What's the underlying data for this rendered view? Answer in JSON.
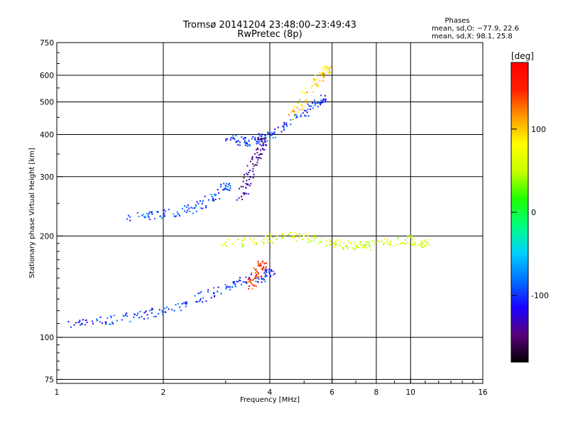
{
  "chart_data": {
    "type": "scatter",
    "title": "Tromsø 20141204 23:48:00–23:49:43",
    "subtitle": "RwPretec (8p)",
    "xlabel": "Frequency [MHz]",
    "ylabel": "Stationary phase Virtual Height [km]",
    "x_scale": "log",
    "y_scale": "log",
    "xlim": [
      1,
      16
    ],
    "ylim": [
      73,
      750
    ],
    "x_ticks": [
      1,
      2,
      4,
      6,
      8,
      10,
      16
    ],
    "x_tick_labels": [
      "1",
      "2",
      "4",
      "6",
      "8",
      "10",
      "16"
    ],
    "y_ticks": [
      75,
      100,
      200,
      300,
      400,
      500,
      600,
      750
    ],
    "y_tick_labels": [
      "75",
      "100",
      "200",
      "300",
      "400",
      "500",
      "600",
      "750"
    ],
    "grid": true,
    "legend": {
      "title": "Phases",
      "lines": [
        "mean, sd,O: −77.9, 22.6",
        "mean, sd,X:  98.1, 25.8"
      ],
      "placement": "top-right"
    },
    "colorbar": {
      "label": "[deg]",
      "range": [
        -180,
        180
      ],
      "ticks": [
        100,
        0,
        -100
      ],
      "tick_labels": [
        "100",
        "0",
        "-100"
      ],
      "colormap": "rainbow",
      "stops": [
        "#000000",
        "#5a007a",
        "#1a00ff",
        "#0070ff",
        "#00d0ff",
        "#00ff80",
        "#20ff00",
        "#c8ff00",
        "#ffff00",
        "#ff9a00",
        "#ff2000",
        "#ff0000"
      ]
    },
    "series": [
      {
        "x": [
          1.05,
          1.2,
          1.4,
          1.6,
          1.8,
          2.0,
          2.3,
          2.6,
          2.9,
          3.2,
          3.5,
          3.8,
          4.0
        ],
        "y": [
          110,
          110,
          112,
          115,
          117,
          120,
          125,
          132,
          138,
          145,
          150,
          150,
          155
        ],
        "phase": -100
      },
      {
        "x": [
          1.6,
          1.8,
          2.0,
          2.2,
          2.4,
          2.6,
          2.8,
          3.0
        ],
        "y": [
          228,
          230,
          232,
          235,
          240,
          250,
          262,
          280
        ],
        "phase": -90
      },
      {
        "x": [
          3.0,
          3.2,
          3.4,
          3.6,
          3.8,
          4.0,
          4.4,
          4.8,
          5.2,
          5.6
        ],
        "y": [
          390,
          385,
          380,
          382,
          390,
          400,
          420,
          450,
          480,
          510
        ],
        "phase": -100
      },
      {
        "x": [
          3.3,
          3.4,
          3.5,
          3.6,
          3.7,
          3.8
        ],
        "y": [
          260,
          280,
          300,
          330,
          350,
          380
        ],
        "phase": -140
      },
      {
        "x": [
          3.0,
          3.5,
          4.0,
          4.5,
          5.0,
          5.5,
          6.0,
          6.5,
          7.0,
          7.5,
          8.0,
          9.0,
          10.0,
          11.0
        ],
        "y": [
          190,
          192,
          196,
          200,
          198,
          195,
          190,
          188,
          186,
          187,
          190,
          192,
          195,
          190
        ],
        "phase": 60
      },
      {
        "x": [
          3.5,
          3.6,
          3.7,
          3.8
        ],
        "y": [
          140,
          148,
          155,
          165
        ],
        "phase": 150
      },
      {
        "x": [
          4.6,
          4.9,
          5.2,
          5.5,
          5.8
        ],
        "y": [
          450,
          490,
          540,
          580,
          620
        ],
        "phase": 100
      }
    ]
  }
}
